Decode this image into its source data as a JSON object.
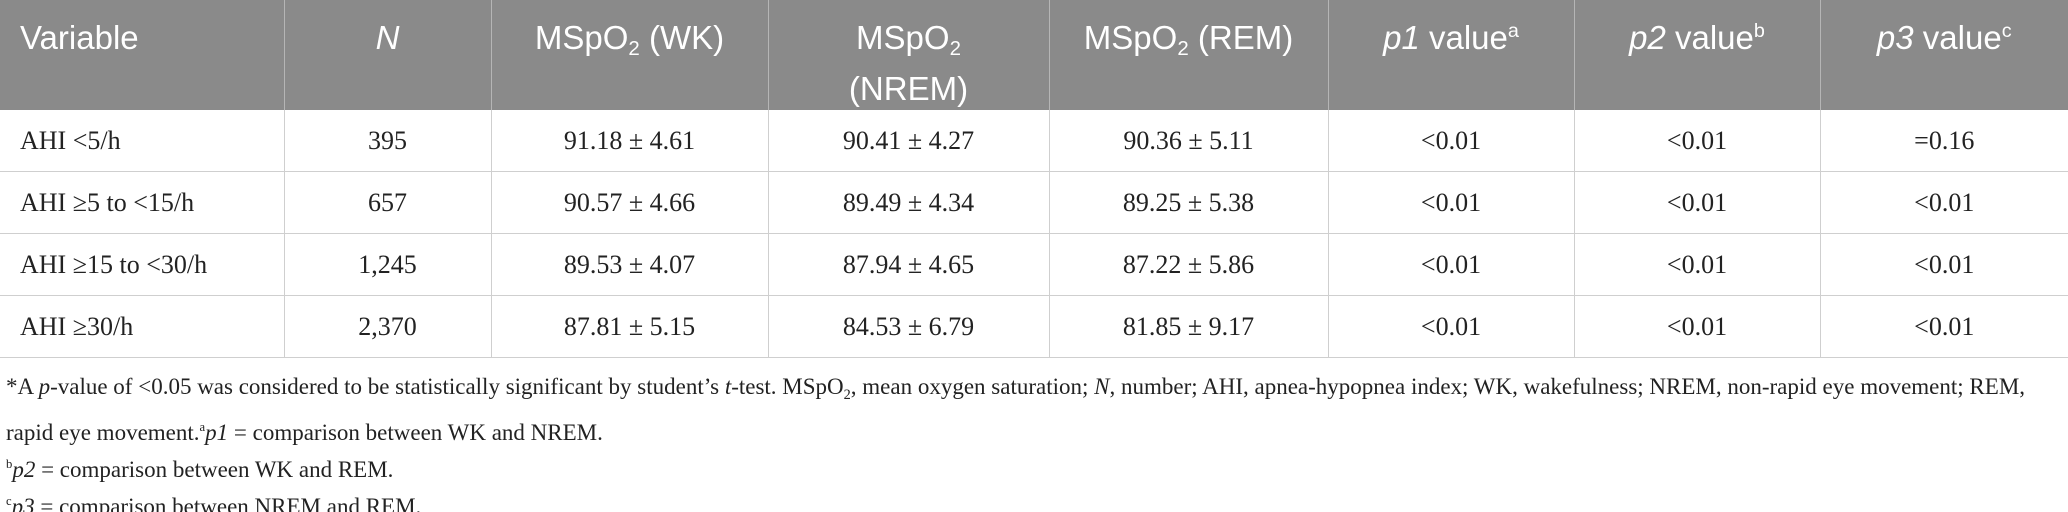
{
  "table": {
    "header": [
      "Variable",
      "N",
      [
        "MSpO",
        "2",
        " (WK)"
      ],
      [
        "MSpO",
        "2",
        "(NREM)"
      ],
      [
        "MSpO",
        "2",
        " (REM)"
      ],
      [
        "p1",
        " value",
        "a"
      ],
      [
        "p2",
        " value",
        "b"
      ],
      [
        "p3",
        " value",
        "c"
      ]
    ],
    "rows": [
      [
        "AHI <5/h",
        "395",
        "91.18 ± 4.61",
        "90.41 ± 4.27",
        "90.36 ± 5.11",
        "<0.01",
        "<0.01",
        "=0.16"
      ],
      [
        "AHI ≥5 to <15/h",
        "657",
        "90.57 ± 4.66",
        "89.49 ± 4.34",
        "89.25 ± 5.38",
        "<0.01",
        "<0.01",
        "<0.01"
      ],
      [
        "AHI ≥15 to <30/h",
        "1,245",
        "89.53 ± 4.07",
        "87.94 ± 4.65",
        "87.22 ± 5.86",
        "<0.01",
        "<0.01",
        "<0.01"
      ],
      [
        "AHI ≥30/h",
        "2,370",
        "87.81 ± 5.15",
        "84.53 ± 6.79",
        "81.85 ± 9.17",
        "<0.01",
        "<0.01",
        "<0.01"
      ]
    ]
  },
  "notes": [
    [
      "*A ",
      "p",
      "-value of <0.05 was considered to be statistically significant by student’s ",
      "t",
      "-test. MSpO",
      "2",
      ", mean oxygen saturation; ",
      "N",
      ", number; AHI, apnea-hypopnea index; WK, wakefulness; NREM, non-rapid eye movement; REM, rapid eye movement.",
      "a",
      "p1",
      " = comparison between WK and NREM."
    ],
    [
      "b",
      "p2",
      " = comparison between WK and REM."
    ],
    [
      "c",
      "p3",
      " = comparison between NREM and REM."
    ]
  ]
}
